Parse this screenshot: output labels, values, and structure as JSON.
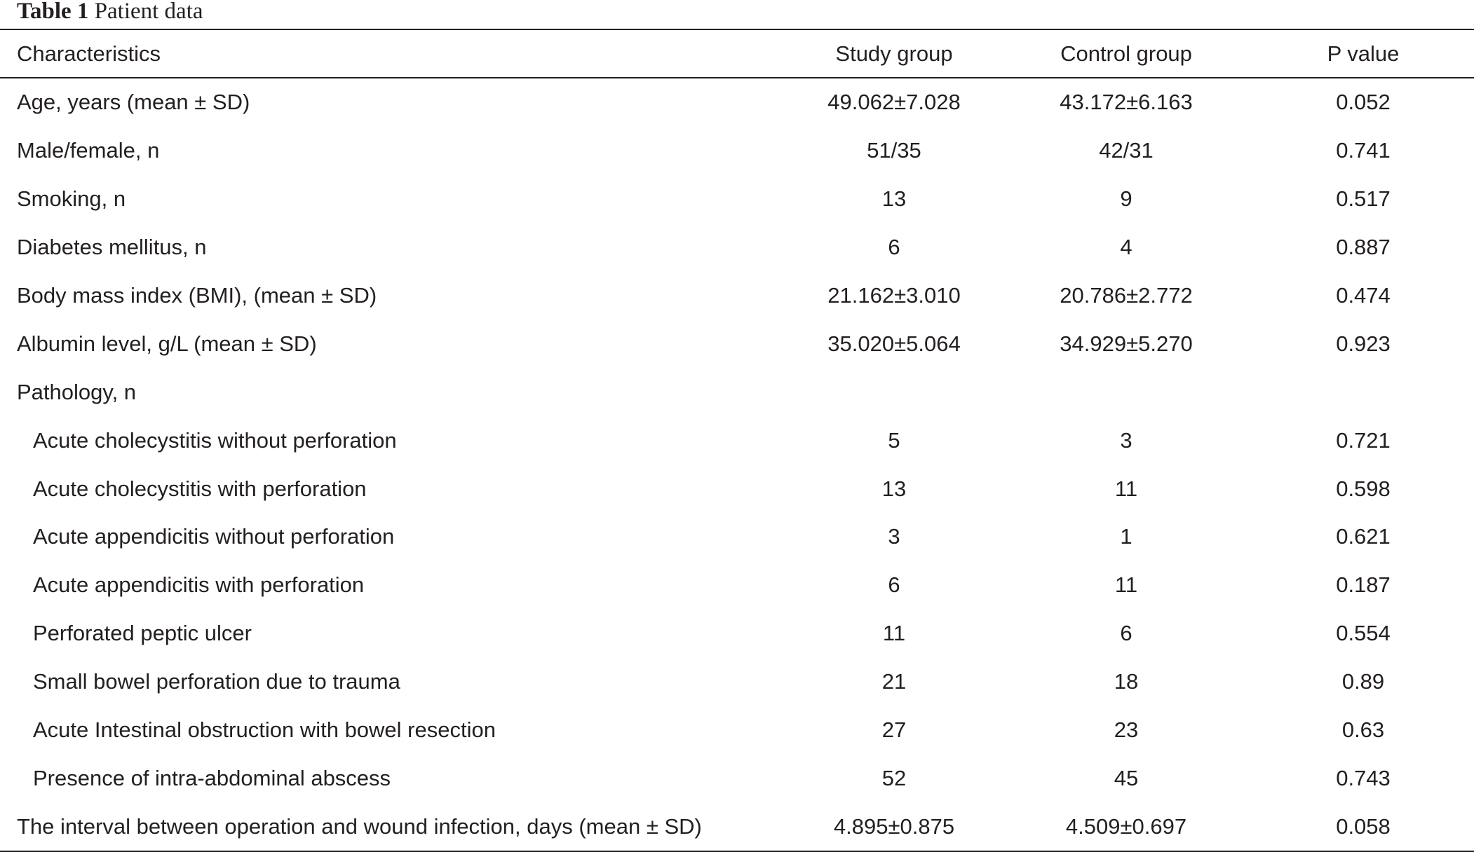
{
  "caption": {
    "label": "Table 1",
    "title": "Patient data"
  },
  "table": {
    "headers": [
      "Characteristics",
      "Study group",
      "Control group",
      "P value"
    ],
    "rows": [
      {
        "label": "Age, years (mean ± SD)",
        "study": "49.062±7.028",
        "control": "43.172±6.163",
        "p": "0.052",
        "indent": false
      },
      {
        "label": "Male/female, n",
        "study": "51/35",
        "control": "42/31",
        "p": "0.741",
        "indent": false
      },
      {
        "label": "Smoking, n",
        "study": "13",
        "control": "9",
        "p": "0.517",
        "indent": false
      },
      {
        "label": "Diabetes mellitus, n",
        "study": "6",
        "control": "4",
        "p": "0.887",
        "indent": false
      },
      {
        "label": "Body mass index (BMI), (mean ± SD)",
        "study": "21.162±3.010",
        "control": "20.786±2.772",
        "p": "0.474",
        "indent": false
      },
      {
        "label": "Albumin level, g/L (mean ± SD)",
        "study": "35.020±5.064",
        "control": "34.929±5.270",
        "p": "0.923",
        "indent": false
      },
      {
        "label": "Pathology, n",
        "study": "",
        "control": "",
        "p": "",
        "indent": false
      },
      {
        "label": "Acute cholecystitis without perforation",
        "study": "5",
        "control": "3",
        "p": "0.721",
        "indent": true
      },
      {
        "label": "Acute cholecystitis with perforation",
        "study": "13",
        "control": "11",
        "p": "0.598",
        "indent": true
      },
      {
        "label": "Acute appendicitis without perforation",
        "study": "3",
        "control": "1",
        "p": "0.621",
        "indent": true
      },
      {
        "label": "Acute appendicitis with perforation",
        "study": "6",
        "control": "11",
        "p": "0.187",
        "indent": true
      },
      {
        "label": "Perforated peptic ulcer",
        "study": "11",
        "control": "6",
        "p": "0.554",
        "indent": true
      },
      {
        "label": "Small bowel perforation due to trauma",
        "study": "21",
        "control": "18",
        "p": "0.89",
        "indent": true
      },
      {
        "label": "Acute Intestinal obstruction with bowel resection",
        "study": "27",
        "control": "23",
        "p": "0.63",
        "indent": true
      },
      {
        "label": "Presence of intra-abdominal abscess",
        "study": "52",
        "control": "45",
        "p": "0.743",
        "indent": true
      },
      {
        "label": "The interval between operation and wound infection, days (mean ± SD)",
        "study": "4.895±0.875",
        "control": "4.509±0.697",
        "p": "0.058",
        "indent": false
      }
    ]
  }
}
